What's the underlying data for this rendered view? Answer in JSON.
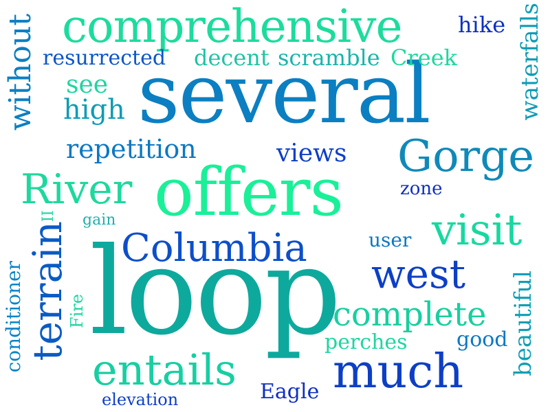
{
  "palette": {
    "green": "#1de89a",
    "green_teal": "#1ed6a0",
    "teal": "#14b8a6",
    "teal_blue": "#0e9fb5",
    "blue": "#0b84c6",
    "deep_blue": "#0a55c8",
    "navy": "#1530c0"
  },
  "words": [
    {
      "text": "several",
      "color": "#0b7fc1"
    },
    {
      "text": "loop",
      "color": "#0ea99d"
    },
    {
      "text": "offers",
      "color": "#19f098"
    },
    {
      "text": "comprehensive",
      "color": "#1cdc9d"
    },
    {
      "text": "Columbia",
      "color": "#0d4fc9"
    },
    {
      "text": "Gorge",
      "color": "#0f8ab8"
    },
    {
      "text": "River",
      "color": "#1ed89e"
    },
    {
      "text": "terrain",
      "color": "#0a5bc4"
    },
    {
      "text": "much",
      "color": "#0d3fc6"
    },
    {
      "text": "entails",
      "color": "#17cfa2"
    },
    {
      "text": "visit",
      "color": "#17d8a0"
    },
    {
      "text": "west",
      "color": "#0d3fc6"
    },
    {
      "text": "complete",
      "color": "#18cfa0"
    },
    {
      "text": "without",
      "color": "#0c7fc2"
    },
    {
      "text": "waterfalls",
      "color": "#0f9cb5"
    },
    {
      "text": "beautiful",
      "color": "#0e9fb5"
    },
    {
      "text": "conditioner",
      "color": "#0b84c6"
    },
    {
      "text": "repetition",
      "color": "#0b78c4"
    },
    {
      "text": "resurrected",
      "color": "#0a55c8"
    },
    {
      "text": "decent",
      "color": "#1ec3a4"
    },
    {
      "text": "scramble",
      "color": "#18b4aa"
    },
    {
      "text": "Creek",
      "color": "#1ed79e"
    },
    {
      "text": "hike",
      "color": "#0d2fc2"
    },
    {
      "text": "see",
      "color": "#1ed6a0"
    },
    {
      "text": "high",
      "color": "#0f9cb5"
    },
    {
      "text": "views",
      "color": "#0d3fc6"
    },
    {
      "text": "zone",
      "color": "#0d2fc2"
    },
    {
      "text": "gain",
      "color": "#1eb0aa"
    },
    {
      "text": "user",
      "color": "#0b78c4"
    },
    {
      "text": "Fire",
      "color": "#1ed6a0"
    },
    {
      "text": "II",
      "color": "#1ed6a0"
    },
    {
      "text": "perches",
      "color": "#1ed6a0"
    },
    {
      "text": "good",
      "color": "#0b78c4"
    },
    {
      "text": "Eagle",
      "color": "#0d2fc2"
    },
    {
      "text": "elevation",
      "color": "#0d3fc6"
    }
  ]
}
